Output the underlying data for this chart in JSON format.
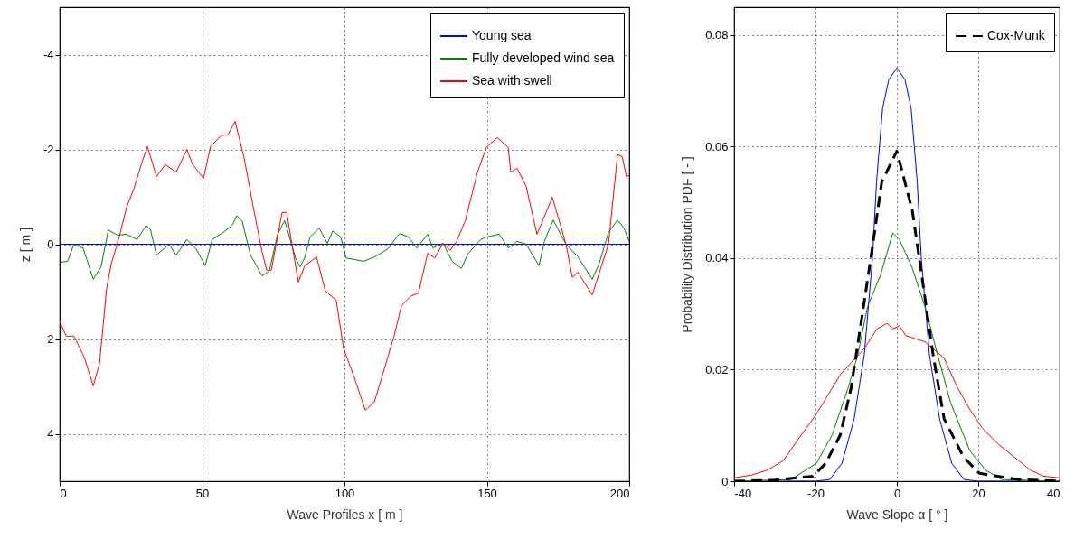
{
  "chart_data": [
    {
      "type": "line",
      "xlabel": "Wave Profiles x [ m ]",
      "ylabel": "z [ m ]",
      "xlim": [
        0,
        200
      ],
      "ylim": [
        5,
        -5
      ],
      "xticks": [
        0,
        50,
        100,
        150,
        200
      ],
      "yticks": [
        -4,
        -2,
        0,
        2,
        4
      ],
      "grid": true,
      "legend": "top right",
      "series": [
        {
          "name": "Young sea",
          "color": "#0000ff",
          "x": [
            0,
            25,
            50,
            75,
            100,
            125,
            150,
            175,
            200
          ],
          "values": [
            0,
            0,
            0,
            0,
            0,
            0,
            0,
            0,
            0
          ]
        },
        {
          "name": "Fully developed wind sea",
          "color": "#008000",
          "x": [
            0.3,
            2.8,
            5,
            8.2,
            11.8,
            14.5,
            17.1,
            20.3,
            23.5,
            27.2,
            30.4,
            31.9,
            34,
            38.4,
            40.9,
            44.7,
            47.9,
            51.1,
            53.6,
            57.4,
            60.6,
            62.2,
            64.1,
            67,
            71.1,
            73.6,
            76.5,
            79,
            82.8,
            84.4,
            86,
            87.9,
            91.1,
            94,
            95.9,
            98.7,
            100.6,
            106.7,
            110.5,
            115.2,
            119.4,
            122.5,
            125.4,
            129.2,
            131.1,
            134.6,
            137.8,
            141,
            143.5,
            147.9,
            149.8,
            154.3,
            157.5,
            160.6,
            163.8,
            168.3,
            170.2,
            173.3,
            177.8,
            181.9,
            187,
            189.5,
            192.7,
            195.9,
            198.1,
            200
          ],
          "values": [
            0.38,
            0.36,
            0,
            0.08,
            0.74,
            0.48,
            -0.3,
            -0.19,
            -0.21,
            -0.1,
            -0.4,
            -0.3,
            0.23,
            0,
            0.23,
            -0.1,
            0.1,
            0.45,
            -0.1,
            -0.25,
            -0.4,
            -0.6,
            -0.48,
            0.23,
            0.67,
            0.57,
            -0.21,
            -0.5,
            0.29,
            0.48,
            0.29,
            -0.15,
            -0.34,
            -0.02,
            -0.28,
            -0.15,
            0.29,
            0.36,
            0.27,
            0.1,
            -0.23,
            -0.15,
            0.08,
            -0.21,
            0.08,
            -0.02,
            0.36,
            0.51,
            0.19,
            -0.1,
            -0.15,
            -0.21,
            0.08,
            -0.06,
            0,
            0.45,
            -0.06,
            -0.51,
            0,
            0.26,
            0.74,
            0.4,
            -0.25,
            -0.51,
            -0.34,
            -0.06
          ]
        },
        {
          "name": "Sea with swell",
          "color": "#ff0000",
          "x": [
            0,
            2.3,
            5,
            8.6,
            11.8,
            14,
            16.5,
            18.1,
            20.9,
            23.5,
            26,
            28.9,
            30.8,
            34,
            37.1,
            40.9,
            44.7,
            46.7,
            50.5,
            53,
            56.8,
            59,
            61.6,
            64.8,
            68,
            71.1,
            72.7,
            74.3,
            78.1,
            79.7,
            83.8,
            86,
            90.2,
            93.3,
            97.1,
            99.7,
            103.5,
            107.3,
            110.5,
            114.3,
            117.5,
            120,
            123.2,
            126,
            129.2,
            131.7,
            134.6,
            137.1,
            139.4,
            142.5,
            146.7,
            149.8,
            153.7,
            157.5,
            158.4,
            160.6,
            163.8,
            167.6,
            173,
            177.8,
            180,
            182,
            187,
            192.7,
            195.9,
            197.5,
            199,
            200
          ],
          "values": [
            1.62,
            1.94,
            1.94,
            2.38,
            2.99,
            2.51,
            0.93,
            0.42,
            -0.15,
            -0.78,
            -1.16,
            -1.73,
            -2.06,
            -1.43,
            -1.68,
            -1.52,
            -2,
            -1.68,
            -1.39,
            -2.06,
            -2.3,
            -2.3,
            -2.59,
            -1.81,
            -0.78,
            0.17,
            0.55,
            0.55,
            -0.67,
            -0.67,
            0.8,
            0.46,
            0.27,
            0.99,
            1.18,
            2.2,
            2.82,
            3.5,
            3.33,
            2.57,
            1.92,
            1.3,
            1.1,
            1.03,
            0.19,
            0.29,
            -0.02,
            0.13,
            -0.06,
            -0.51,
            -1.52,
            -2.04,
            -2.25,
            -2.04,
            -1.52,
            -1.6,
            -1.22,
            -0.21,
            -0.99,
            0,
            0.7,
            0.59,
            1.07,
            0,
            -1.89,
            -1.85,
            -1.43,
            -1.45
          ]
        }
      ]
    },
    {
      "type": "line",
      "xlabel": "Wave Slope α [ ° ]",
      "ylabel": "Probability Distribution PDF [ - ]",
      "xlim": [
        -40,
        40
      ],
      "ylim": [
        0,
        0.085
      ],
      "xticks": [
        -40,
        -20,
        0,
        20,
        40
      ],
      "yticks": [
        0,
        0.02,
        0.04,
        0.06,
        0.08
      ],
      "grid": true,
      "legend": "top right",
      "series": [
        {
          "color": "#0000ff",
          "x": [
            -40,
            -20,
            -16.5,
            -13.5,
            -10.5,
            -8,
            -6,
            -5,
            -3.5,
            -2,
            0,
            2,
            3.5,
            5,
            6,
            8,
            10.5,
            13.5,
            16.5,
            20,
            40
          ],
          "values": [
            0,
            0,
            0.0003,
            0.0032,
            0.0112,
            0.0227,
            0.04,
            0.0537,
            0.0669,
            0.072,
            0.0741,
            0.072,
            0.0669,
            0.0537,
            0.04,
            0.0227,
            0.0112,
            0.0032,
            0.0003,
            0,
            0
          ]
        },
        {
          "color": "#008000",
          "x": [
            -40,
            -26,
            -19.8,
            -15.9,
            -11.9,
            -9.6,
            -7.2,
            -4,
            -1,
            0.6,
            3.8,
            6.9,
            10,
            13.2,
            17.9,
            21.8,
            25.8,
            40
          ],
          "values": [
            0,
            0.0003,
            0.0032,
            0.0083,
            0.0169,
            0.0227,
            0.0313,
            0.037,
            0.0445,
            0.0434,
            0.0382,
            0.0313,
            0.0227,
            0.0141,
            0.0055,
            0.002,
            0.0003,
            0
          ]
        },
        {
          "color": "#ff0000",
          "x": [
            -40,
            -35.7,
            -31.8,
            -27.9,
            -24,
            -20,
            -13.8,
            -8,
            -4.9,
            -2.4,
            -0.9,
            0.6,
            2.2,
            6.9,
            11.6,
            14.8,
            17.9,
            21,
            25,
            28.9,
            32.8,
            36,
            40
          ],
          "values": [
            0.0006,
            0.0011,
            0.002,
            0.0037,
            0.0078,
            0.0118,
            0.0192,
            0.0238,
            0.0273,
            0.0283,
            0.0273,
            0.0279,
            0.0261,
            0.025,
            0.0221,
            0.0169,
            0.0129,
            0.0095,
            0.0066,
            0.0043,
            0.002,
            0.0009,
            0.0006
          ]
        },
        {
          "name": "Cox-Munk",
          "color": "#000000",
          "line_style": "dashed",
          "x": [
            -40,
            -30,
            -20.6,
            -17.5,
            -13.9,
            -11.2,
            -8.8,
            -6.4,
            -3.7,
            0,
            3.8,
            6.1,
            8.9,
            11.6,
            16.4,
            20.3,
            30,
            40
          ],
          "values": [
            0,
            0.0002,
            0.0009,
            0.0032,
            0.0083,
            0.0169,
            0.0284,
            0.04,
            0.0537,
            0.0592,
            0.0485,
            0.037,
            0.0227,
            0.0112,
            0.0043,
            0.0014,
            0.0003,
            0
          ]
        }
      ]
    }
  ]
}
